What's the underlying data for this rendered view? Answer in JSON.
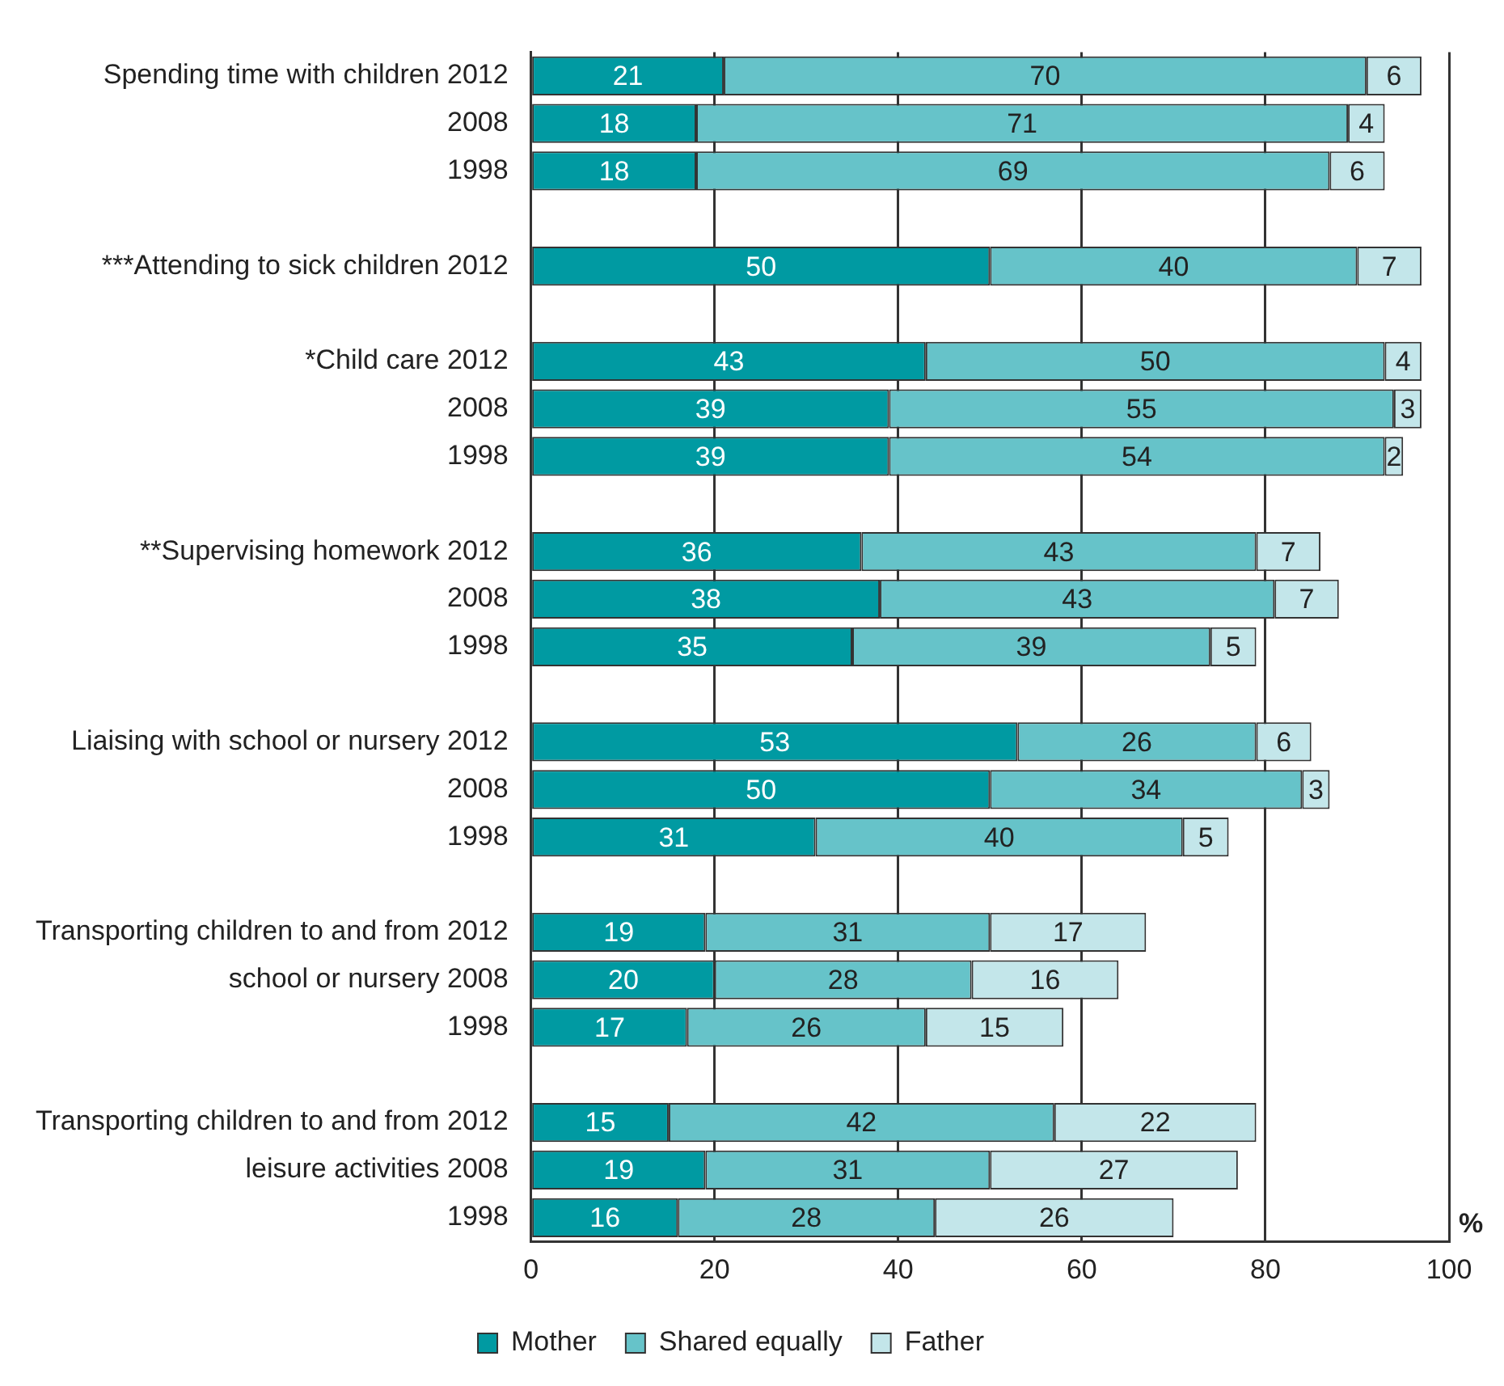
{
  "chart_data": {
    "type": "bar",
    "orientation": "horizontal",
    "stacked": true,
    "xlabel": "%",
    "categories": [
      "Spending time with children 2012",
      "2008",
      "1998",
      null,
      "***Attending to sick children 2012",
      null,
      "*Child care 2012",
      "2008",
      "1998",
      null,
      "**Supervising homework 2012",
      "2008",
      "1998",
      null,
      "Liaising with school or nursery 2012",
      "2008",
      "1998",
      null,
      "Transporting children to and from 2012",
      "school or nursery 2008",
      "1998",
      null,
      "Transporting children to and from 2012",
      "leisure activities 2008",
      "1998"
    ],
    "series": [
      {
        "name": "Mother",
        "color": "#009aa2",
        "values": [
          21,
          18,
          18,
          null,
          50,
          null,
          43,
          39,
          39,
          null,
          36,
          38,
          35,
          null,
          53,
          50,
          31,
          null,
          19,
          20,
          17,
          null,
          15,
          19,
          16
        ]
      },
      {
        "name": "Shared equally",
        "color": "#66c3c9",
        "values": [
          70,
          71,
          69,
          null,
          40,
          null,
          50,
          55,
          54,
          null,
          43,
          43,
          39,
          null,
          26,
          34,
          40,
          null,
          31,
          28,
          26,
          null,
          42,
          31,
          28
        ]
      },
      {
        "name": "Father",
        "color": "#c3e6ea",
        "values": [
          6,
          4,
          6,
          null,
          7,
          null,
          4,
          3,
          2,
          null,
          7,
          7,
          5,
          null,
          6,
          3,
          5,
          null,
          17,
          16,
          15,
          null,
          22,
          27,
          26
        ]
      }
    ],
    "xlim": [
      0,
      100
    ],
    "xticks": [
      0,
      20,
      40,
      60,
      80,
      100
    ],
    "grid": "x",
    "legend": "bottom",
    "data_labels": true
  }
}
